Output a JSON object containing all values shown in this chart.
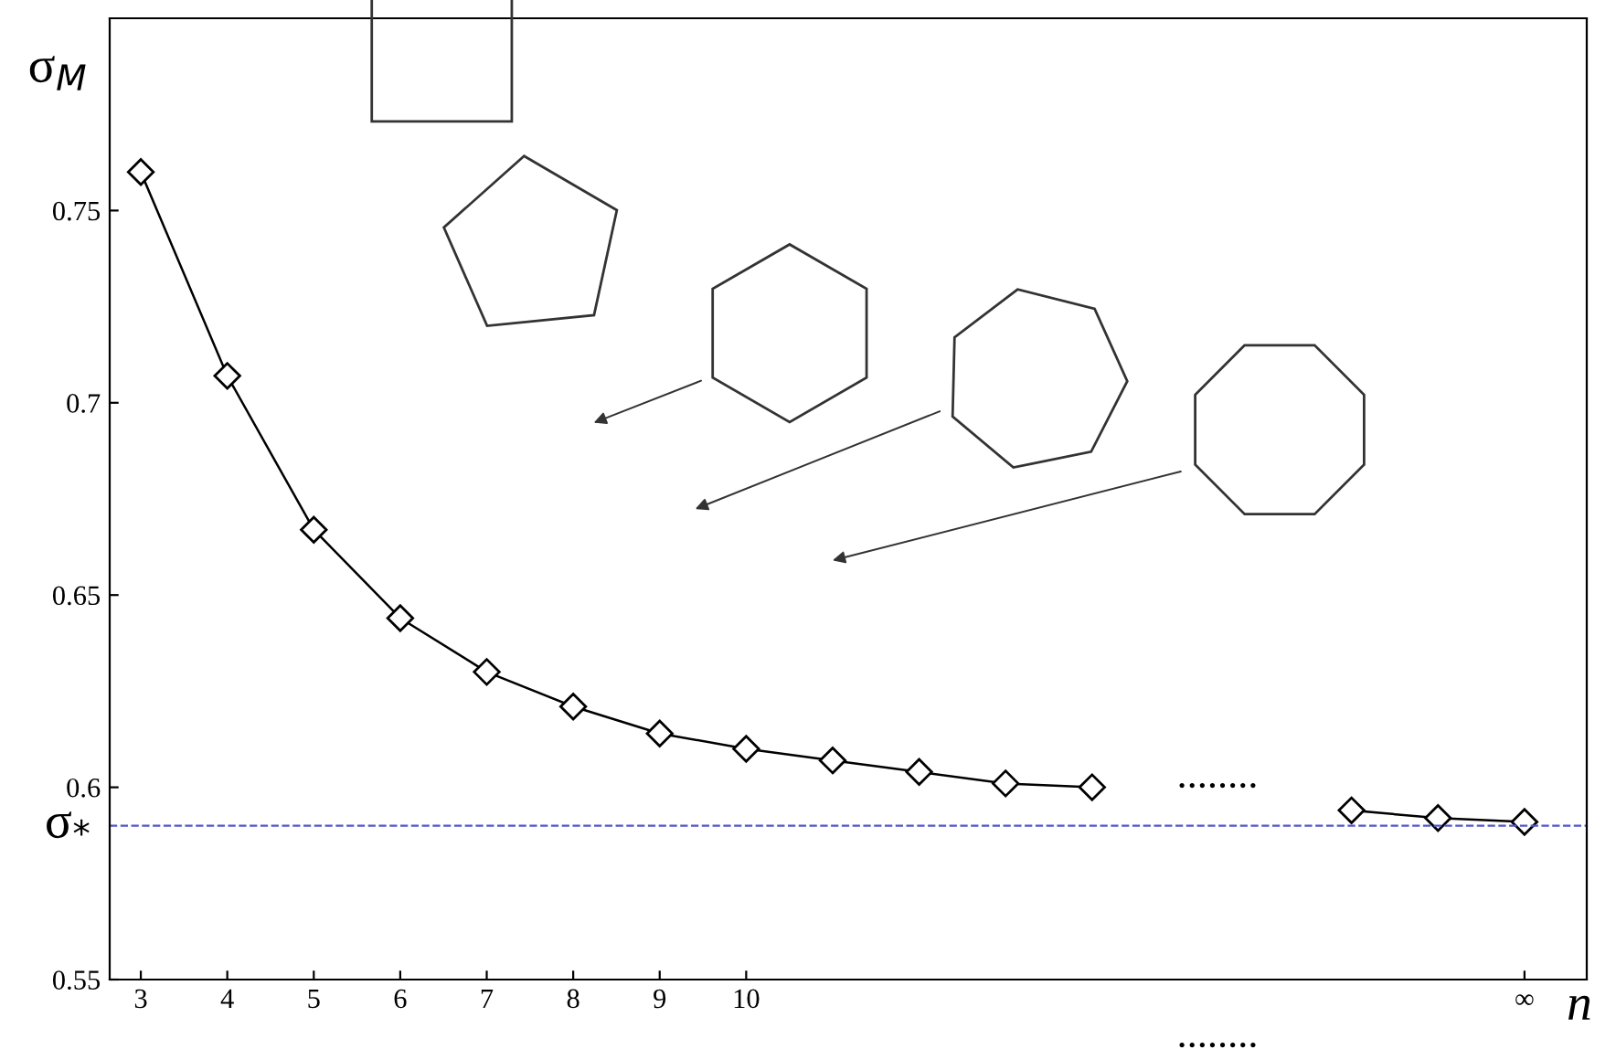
{
  "chart_data": {
    "type": "line",
    "x": [
      3,
      4,
      5,
      6,
      7,
      8,
      9,
      10,
      11,
      12,
      13,
      14,
      15,
      17,
      18,
      19
    ],
    "series": [
      {
        "color": "#000000",
        "values": [
          0.76,
          0.707,
          0.667,
          0.644,
          0.63,
          0.621,
          0.614,
          0.61,
          0.607,
          0.604,
          0.601,
          0.6,
          null,
          0.594,
          0.592,
          0.591
        ]
      }
    ],
    "marker": "diamond",
    "line_style": "solid",
    "grid": false,
    "legend": false,
    "xlim": [
      2.64,
      19.72
    ],
    "ylim": [
      0.55,
      0.8
    ],
    "xticks": [
      3,
      4,
      5,
      6,
      7,
      8,
      9,
      10,
      {
        "value": 19,
        "label": "∞"
      }
    ],
    "yticks": [
      0.55,
      0.6,
      0.65,
      0.7,
      0.75
    ],
    "xlabel": "n",
    "ylabel": "σ$_{M}$",
    "ref_lines": [
      {
        "axis": "y",
        "value": 0.59,
        "label": "σ$_{*}$",
        "color": "#5555cc",
        "line_style": "dashed"
      }
    ],
    "annotations": [
      "........",
      "........"
    ]
  }
}
